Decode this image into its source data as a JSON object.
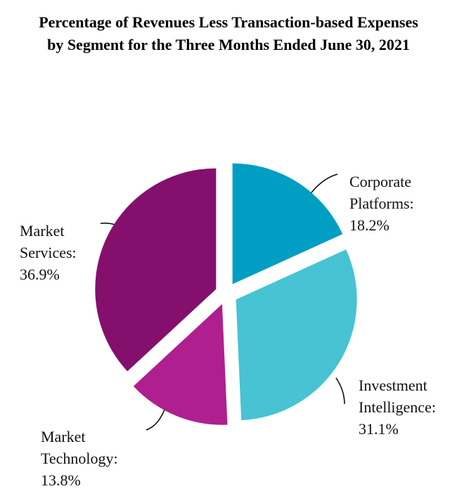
{
  "chart_data": {
    "type": "pie",
    "title": "Percentage of Revenues Less Transaction-based Expenses by Segment for the Three Months Ended June 30, 2021",
    "categories": [
      "Corporate Platforms:",
      "Investment Intelligence:",
      "Market Technology:",
      "Market Services:"
    ],
    "values": [
      18.2,
      31.1,
      13.8,
      36.9
    ],
    "value_labels": [
      "18.2%",
      "31.1%",
      "13.8%",
      "36.9%"
    ],
    "colors": [
      "#009ec3",
      "#47c3d3",
      "#b01f8f",
      "#850f6d"
    ]
  }
}
